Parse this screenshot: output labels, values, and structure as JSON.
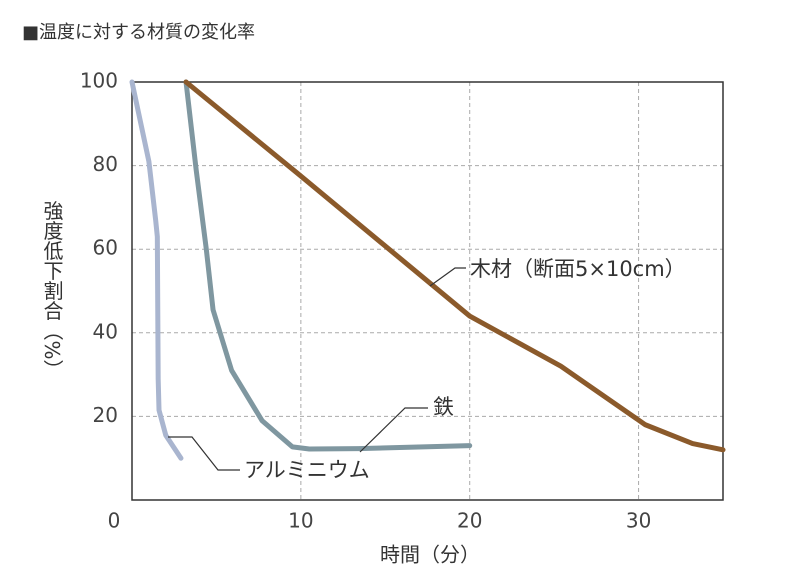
{
  "chart_data": {
    "type": "line",
    "title": "■温度に対する材質の変化率",
    "x_label": "時間（分）",
    "y_label": "強度低下割合（%）",
    "xlim": [
      0,
      35
    ],
    "ylim": [
      0,
      100
    ],
    "xticks": [
      0,
      10,
      20,
      30
    ],
    "yticks": [
      20,
      40,
      60,
      80,
      100
    ],
    "grid": true,
    "series": [
      {
        "name": "アルミニウム",
        "color": "#a9b5cf",
        "x": [
          0,
          1.0,
          1.4,
          1.5,
          1.55,
          1.6,
          2.0,
          2.9
        ],
        "values": [
          100,
          81,
          67,
          63,
          29,
          21.5,
          15.5,
          10
        ]
      },
      {
        "name": "鉄",
        "color": "#7f97a0",
        "x": [
          3.2,
          3.8,
          4.4,
          4.8,
          5.9,
          7.7,
          9.5,
          10.5,
          13.4,
          20
        ],
        "values": [
          100,
          79,
          60,
          45.5,
          31,
          19,
          12.7,
          12.2,
          12.3,
          13
        ]
      },
      {
        "name": "木材（断面5×10cm）",
        "color": "#8b5a2b",
        "x": [
          3.2,
          10,
          20,
          25.4,
          30.4,
          33.2,
          35
        ],
        "values": [
          100,
          77.5,
          44,
          32,
          18,
          13.5,
          12
        ]
      }
    ]
  }
}
